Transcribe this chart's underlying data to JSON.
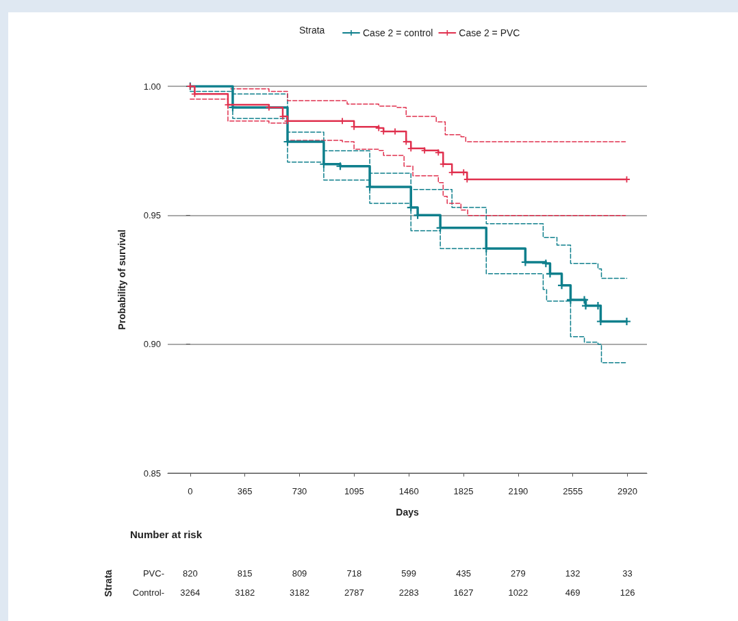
{
  "chart_data": {
    "type": "step",
    "ylabel": "Probability of survival",
    "xlabel": "Days",
    "legend_title": "Strata",
    "legend": "top",
    "grid": "y",
    "xlim": [
      -150,
      3050
    ],
    "ylim": [
      0.85,
      1.0
    ],
    "xticks": [
      0,
      365,
      730,
      1095,
      1460,
      1825,
      2190,
      2555,
      2920
    ],
    "yticks": [
      {
        "value": 0.85,
        "label": "0.85"
      },
      {
        "value": 0.9,
        "label": "0.90"
      },
      {
        "value": 0.95,
        "label": "0.95"
      },
      {
        "value": 1.0,
        "label": "1.00"
      }
    ],
    "series": [
      {
        "name": "Case 2 = control",
        "color": "#0e7f8c",
        "marker": "cross",
        "line_style": "solid",
        "x": [
          0,
          284,
          650,
          892,
          1002,
          1199,
          1474,
          1519,
          1670,
          1977,
          2238,
          2375,
          2403,
          2481,
          2540,
          2632,
          2641,
          2723,
          2741,
          2915
        ],
        "values": [
          1.0,
          0.9918,
          0.9785,
          0.9698,
          0.969,
          0.961,
          0.953,
          0.95,
          0.9451,
          0.9371,
          0.9318,
          0.9313,
          0.9273,
          0.9228,
          0.9172,
          0.9172,
          0.9149,
          0.9149,
          0.9088,
          0.9088
        ]
      },
      {
        "name": "Case 2 = PVC",
        "color": "#e0304e",
        "marker": "cross",
        "line_style": "solid",
        "x": [
          0,
          30,
          252,
          526,
          618,
          650,
          1016,
          1094,
          1259,
          1291,
          1368,
          1442,
          1474,
          1565,
          1657,
          1689,
          1748,
          1826,
          1849,
          2915
        ],
        "values": [
          1.0,
          0.997,
          0.9928,
          0.9918,
          0.9883,
          0.9865,
          0.9865,
          0.9843,
          0.9838,
          0.9825,
          0.9825,
          0.9785,
          0.9759,
          0.9751,
          0.9743,
          0.9698,
          0.9666,
          0.9666,
          0.9639,
          0.9639
        ]
      },
      {
        "color": "#0e7f8c",
        "marker": "none",
        "line_style": "dashed",
        "x": [
          0,
          284,
          650,
          892,
          1199,
          1474,
          1748,
          1977,
          2357,
          2449,
          2540,
          2723,
          2746,
          2915
        ],
        "values": [
          1.0,
          0.997,
          0.9822,
          0.975,
          0.9663,
          0.96,
          0.953,
          0.9467,
          0.9414,
          0.9384,
          0.9313,
          0.9292,
          0.9255,
          0.9255
        ]
      },
      {
        "color": "#0e7f8c",
        "marker": "none",
        "line_style": "dashed",
        "x": [
          0,
          284,
          650,
          892,
          1199,
          1474,
          1670,
          1977,
          2357,
          2380,
          2540,
          2632,
          2723,
          2746,
          2915
        ],
        "values": [
          0.998,
          0.9875,
          0.9706,
          0.9636,
          0.9546,
          0.944,
          0.9371,
          0.9273,
          0.9212,
          0.9167,
          0.9029,
          0.9008,
          0.9,
          0.8928,
          0.8928
        ]
      },
      {
        "color": "#e0304e",
        "marker": "none",
        "line_style": "dashed",
        "x": [
          0,
          270,
          526,
          650,
          1048,
          1259,
          1382,
          1442,
          1643,
          1703,
          1808,
          1840,
          2906
        ],
        "values": [
          1.0,
          0.999,
          0.998,
          0.9944,
          0.9931,
          0.9923,
          0.9918,
          0.9883,
          0.9862,
          0.9812,
          0.9804,
          0.9785,
          0.9785
        ]
      },
      {
        "color": "#e0304e",
        "marker": "none",
        "line_style": "dashed",
        "x": [
          0,
          252,
          526,
          650,
          1016,
          1094,
          1259,
          1291,
          1428,
          1487,
          1657,
          1689,
          1716,
          1808,
          1853,
          2906
        ],
        "values": [
          0.995,
          0.9865,
          0.9857,
          0.979,
          0.9785,
          0.9756,
          0.9751,
          0.9732,
          0.969,
          0.9653,
          0.9626,
          0.9573,
          0.9546,
          0.952,
          0.9499,
          0.9499
        ]
      }
    ],
    "annotations": [
      "Number at risk",
      "Strata",
      "PVC-",
      "820",
      "815",
      "809",
      "718",
      "599",
      "435",
      "279",
      "132",
      "33",
      "Control-",
      "3264",
      "3182",
      "3182",
      "2787",
      "2283",
      "1627",
      "1022",
      "469",
      "126"
    ]
  }
}
